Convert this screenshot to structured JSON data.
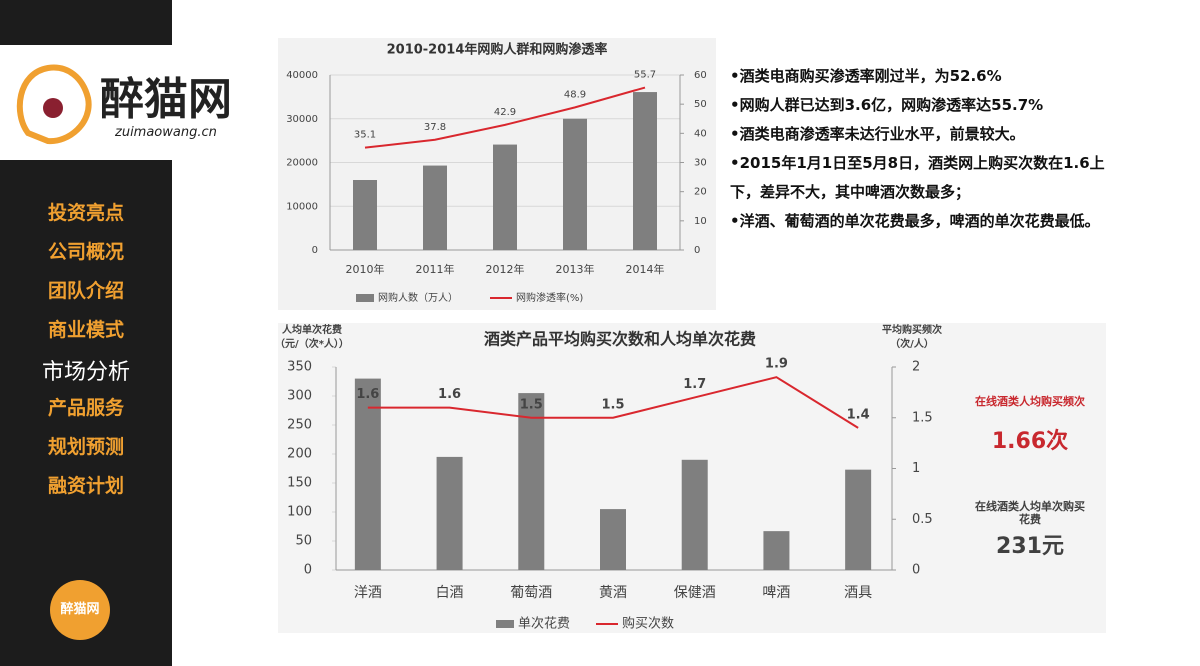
{
  "sidebar": {
    "logo": "醉猫网",
    "logo_url": "zuimaowang.cn",
    "menu": [
      "投资亮点",
      "公司概况",
      "团队介绍",
      "商业模式",
      "市场分析",
      "产品服务",
      "规划预测",
      "融资计划"
    ],
    "active": 4,
    "badge": "醉猫网"
  },
  "bullets": [
    "•酒类电商购买渗透率刚过半，为52.6%",
    "•网购人群已达到3.6亿，网购渗透率达55.7%",
    "•酒类电商渗透率未达行业水平，前景较大。",
    "•2015年1月1日至5月8日，酒类网上购买次数在1.6上下，差异不大，其中啤酒次数最多；",
    "•洋酒、葡萄酒的单次花费最多，啤酒的单次花费最低。"
  ],
  "stats": [
    {
      "label": "在线酒类人均购买频次",
      "value": "1.66次",
      "color": "#c8282e"
    },
    {
      "label": "在线酒类人均单次购买花费",
      "value": "231元",
      "color": "#404040"
    }
  ],
  "chart_data": [
    {
      "type": "combo",
      "title": "2010-2014年网购人群和网购渗透率",
      "categories": [
        "2010年",
        "2011年",
        "2012年",
        "2013年",
        "2014年"
      ],
      "series": [
        {
          "name": "网购人数（万人）",
          "kind": "bar",
          "color": "#7f7f7f",
          "values": [
            16000,
            19300,
            24100,
            30000,
            36100
          ]
        },
        {
          "name": "网购渗透率(%)",
          "kind": "line",
          "axis": "y2",
          "color": "#d9272e",
          "data_labels": true,
          "values": [
            35.1,
            37.8,
            42.9,
            48.9,
            55.7
          ]
        }
      ],
      "ylim": [
        0,
        40000
      ],
      "yticks": [
        0,
        10000,
        20000,
        30000,
        40000
      ],
      "y2lim": [
        0,
        60
      ],
      "y2ticks": [
        0,
        10,
        20,
        30,
        40,
        50,
        60
      ],
      "grid": true
    },
    {
      "type": "combo",
      "title": "酒类产品平均购买次数和人均单次花费",
      "ylabel": [
        "人均单次花费",
        "（元/（次*人））"
      ],
      "y2label": [
        "平均购买频次",
        "（次/人）"
      ],
      "categories": [
        "洋酒",
        "白酒",
        "葡萄酒",
        "黄酒",
        "保健酒",
        "啤酒",
        "酒具"
      ],
      "series": [
        {
          "name": "单次花费",
          "kind": "bar",
          "color": "#7f7f7f",
          "values": [
            330,
            195,
            305,
            105,
            190,
            67,
            173
          ]
        },
        {
          "name": "购买次数",
          "kind": "line",
          "axis": "y2",
          "color": "#d9272e",
          "data_labels": true,
          "values": [
            1.6,
            1.6,
            1.5,
            1.5,
            1.7,
            1.9,
            1.4
          ]
        }
      ],
      "ylim": [
        0,
        350
      ],
      "yticks": [
        0,
        50,
        100,
        150,
        200,
        250,
        300,
        350
      ],
      "y2lim": [
        0,
        2
      ],
      "y2ticks": [
        0,
        0.5,
        1,
        1.5,
        2
      ],
      "grid": false
    }
  ]
}
